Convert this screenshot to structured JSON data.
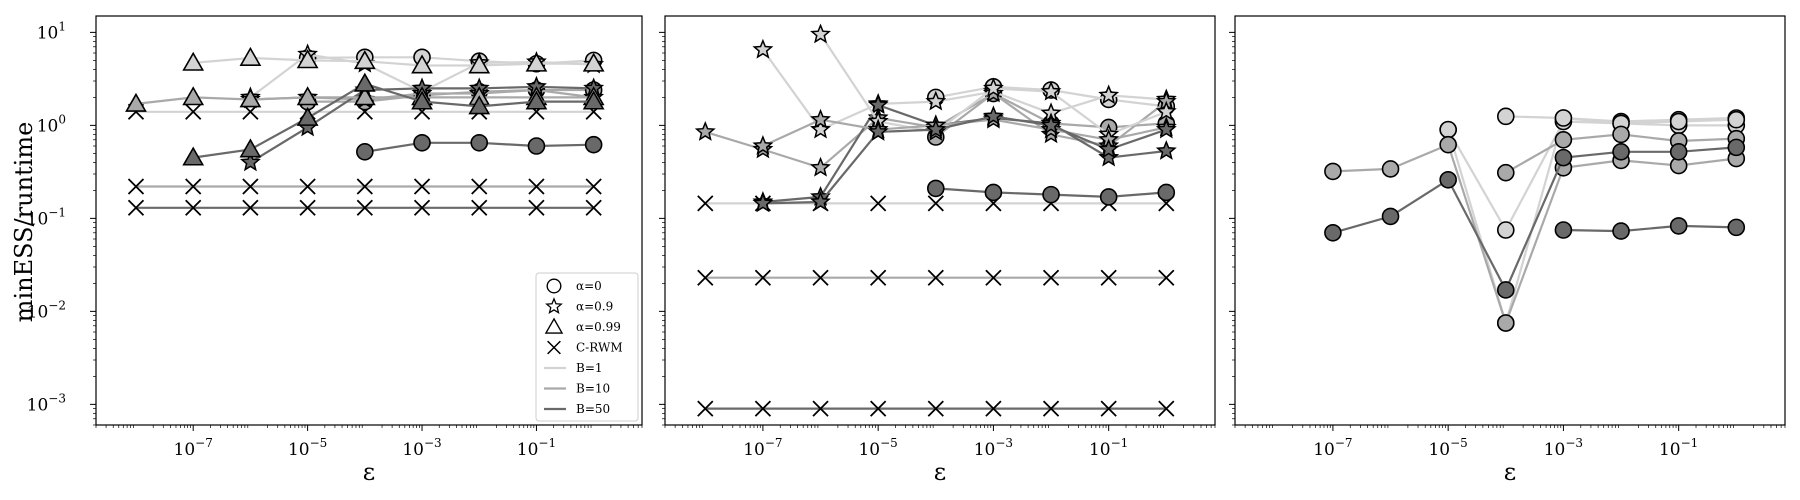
{
  "chart_data": {
    "type": "line",
    "scale": {
      "x": "log",
      "y": "log"
    },
    "xlim": [
      2e-09,
      7
    ],
    "ylim": [
      0.0006,
      15
    ],
    "ylabel": "minESS/runtime",
    "xlabel": "ε",
    "xticks": [
      1e-07,
      1e-05,
      0.001,
      0.1
    ],
    "xtick_labels": [
      "10",
      "10",
      "10",
      "10"
    ],
    "xtick_exponents": [
      "−7",
      "−5",
      "−3",
      "−1"
    ],
    "yticks": [
      0.001,
      0.01,
      0.1,
      1,
      10
    ],
    "ytick_labels": [
      "10",
      "10",
      "10",
      "10",
      "10"
    ],
    "ytick_exponents": [
      "−3",
      "−2",
      "−1",
      "0",
      "1"
    ],
    "colors": {
      "B=1": "#d3d3d3",
      "B=10": "#a9a9a9",
      "B=50": "#696969"
    },
    "legend": {
      "placement": "lower-right",
      "entries": [
        {
          "label": "α=0",
          "kind": "marker",
          "marker": "circle"
        },
        {
          "label": "α=0.9",
          "kind": "marker",
          "marker": "star"
        },
        {
          "label": "α=0.99",
          "kind": "marker",
          "marker": "triangle"
        },
        {
          "label": "C-RWM",
          "kind": "marker",
          "marker": "x"
        },
        {
          "label": "B=1",
          "kind": "line",
          "color": "B=1"
        },
        {
          "label": "B=10",
          "kind": "line",
          "color": "B=10"
        },
        {
          "label": "B=50",
          "kind": "line",
          "color": "B=50"
        }
      ]
    },
    "panels": [
      {
        "show_legend": true,
        "series": [
          {
            "marker": "x",
            "color": "B=1",
            "x": [
              1e-08,
              1e-07,
              1e-06,
              1e-05,
              0.0001,
              0.001,
              0.01,
              0.1,
              1
            ],
            "y": [
              1.4,
              1.4,
              1.4,
              1.4,
              1.4,
              1.4,
              1.4,
              1.4,
              1.4
            ]
          },
          {
            "marker": "x",
            "color": "B=10",
            "x": [
              1e-08,
              1e-07,
              1e-06,
              1e-05,
              0.0001,
              0.001,
              0.01,
              0.1,
              1
            ],
            "y": [
              0.22,
              0.22,
              0.22,
              0.22,
              0.22,
              0.22,
              0.22,
              0.22,
              0.22
            ]
          },
          {
            "marker": "x",
            "color": "B=50",
            "x": [
              1e-08,
              1e-07,
              1e-06,
              1e-05,
              0.0001,
              0.001,
              0.01,
              0.1,
              1
            ],
            "y": [
              0.13,
              0.13,
              0.13,
              0.13,
              0.13,
              0.13,
              0.13,
              0.13,
              0.13
            ]
          },
          {
            "marker": "circle",
            "color": "B=1",
            "x": [
              1e-05,
              0.0001,
              0.001,
              0.01,
              0.1,
              1
            ],
            "y": [
              5.3,
              5.4,
              5.4,
              4.9,
              4.6,
              5.0
            ]
          },
          {
            "marker": "circle",
            "color": "B=10",
            "x": [
              1e-05,
              0.0001,
              0.001,
              0.01,
              0.1,
              1
            ],
            "y": [
              1.8,
              1.8,
              2.1,
              2.3,
              2.4,
              2.4
            ]
          },
          {
            "marker": "circle",
            "color": "B=50",
            "x": [
              0.0001,
              0.001,
              0.01,
              0.1,
              1
            ],
            "y": [
              0.52,
              0.65,
              0.65,
              0.6,
              0.62
            ]
          },
          {
            "marker": "star",
            "color": "B=1",
            "x": [
              1e-06,
              1e-05,
              0.0001,
              0.001,
              0.01,
              0.1,
              1
            ],
            "y": [
              2.0,
              5.8,
              4.6,
              2.3,
              4.7,
              4.8,
              4.5
            ]
          },
          {
            "marker": "star",
            "color": "B=10",
            "x": [
              1e-06,
              1e-05,
              0.0001,
              0.001,
              0.01,
              0.1,
              1
            ],
            "y": [
              1.9,
              2.0,
              1.9,
              2.2,
              2.2,
              2.4,
              2.0
            ]
          },
          {
            "marker": "star",
            "color": "B=50",
            "x": [
              1e-06,
              1e-05,
              0.0001,
              0.001,
              0.01,
              0.1,
              1
            ],
            "y": [
              0.4,
              0.95,
              2.4,
              2.5,
              2.5,
              2.6,
              2.5
            ]
          },
          {
            "marker": "triangle",
            "color": "B=1",
            "x": [
              1e-07,
              1e-06,
              1e-05,
              0.0001,
              0.001,
              0.01,
              0.1,
              1
            ],
            "y": [
              4.7,
              5.3,
              5.0,
              4.9,
              4.4,
              4.4,
              4.6,
              4.6
            ]
          },
          {
            "marker": "triangle",
            "color": "B=10",
            "x": [
              1e-08,
              1e-07,
              1e-06,
              1e-05,
              0.0001,
              0.001,
              0.01,
              0.1,
              1
            ],
            "y": [
              1.7,
              2.0,
              1.9,
              2.0,
              2.0,
              2.0,
              2.0,
              2.0,
              2.0
            ]
          },
          {
            "marker": "triangle",
            "color": "B=50",
            "x": [
              1e-07,
              1e-06,
              1e-05,
              0.0001,
              0.001,
              0.01,
              0.1,
              1
            ],
            "y": [
              0.45,
              0.55,
              1.2,
              2.8,
              1.8,
              1.6,
              1.8,
              1.8
            ]
          }
        ]
      },
      {
        "show_legend": false,
        "series": [
          {
            "marker": "x",
            "color": "B=1",
            "x": [
              1e-08,
              1e-07,
              1e-06,
              1e-05,
              0.0001,
              0.001,
              0.01,
              0.1,
              1
            ],
            "y": [
              0.145,
              0.145,
              0.145,
              0.145,
              0.145,
              0.145,
              0.145,
              0.145,
              0.145
            ]
          },
          {
            "marker": "x",
            "color": "B=10",
            "x": [
              1e-08,
              1e-07,
              1e-06,
              1e-05,
              0.0001,
              0.001,
              0.01,
              0.1,
              1
            ],
            "y": [
              0.023,
              0.023,
              0.023,
              0.023,
              0.023,
              0.023,
              0.023,
              0.023,
              0.023
            ]
          },
          {
            "marker": "x",
            "color": "B=50",
            "x": [
              1e-08,
              1e-07,
              1e-06,
              1e-05,
              0.0001,
              0.001,
              0.01,
              0.1,
              1
            ],
            "y": [
              0.0009,
              0.0009,
              0.0009,
              0.0009,
              0.0009,
              0.0009,
              0.0009,
              0.0009,
              0.0009
            ]
          },
          {
            "marker": "circle",
            "color": "B=1",
            "x": [
              0.0001,
              0.001,
              0.01,
              0.1,
              1
            ],
            "y": [
              2.0,
              2.6,
              2.4,
              1.9,
              1.6
            ]
          },
          {
            "marker": "circle",
            "color": "B=10",
            "x": [
              0.0001,
              0.001,
              0.01,
              0.1,
              1
            ],
            "y": [
              0.75,
              2.2,
              1.05,
              0.95,
              1.05
            ]
          },
          {
            "marker": "circle",
            "color": "B=50",
            "x": [
              0.0001,
              0.001,
              0.01,
              0.1,
              1
            ],
            "y": [
              0.21,
              0.19,
              0.18,
              0.17,
              0.19
            ]
          },
          {
            "marker": "star",
            "color": "B=1",
            "x": [
              1e-07,
              1e-06,
              1e-05,
              0.0001,
              0.001,
              0.01,
              0.1,
              1
            ],
            "y": [
              6.5,
              0.9,
              1.7,
              1.8,
              2.3,
              1.35,
              2.1,
              1.9
            ]
          },
          {
            "marker": "star",
            "color": "B=10",
            "x": [
              1e-08,
              1e-07,
              1e-06,
              1e-05,
              0.0001,
              0.001,
              0.01,
              0.1,
              1
            ],
            "y": [
              0.85,
              0.55,
              0.35,
              1.2,
              0.95,
              2.2,
              0.8,
              0.6,
              1.8
            ]
          },
          {
            "marker": "star",
            "color": "B=50",
            "x": [
              1e-07,
              1e-06,
              1e-05,
              0.0001,
              0.001,
              0.01,
              0.1,
              1
            ],
            "y": [
              0.15,
              0.17,
              1.65,
              1.0,
              1.2,
              1.05,
              0.45,
              0.53
            ]
          },
          {
            "marker": "star",
            "color": "B=1",
            "x": [
              1e-06,
              1e-05,
              0.0001,
              0.001,
              0.01,
              0.1,
              1
            ],
            "y": [
              9.5,
              1.1,
              0.85,
              2.5,
              2.3,
              0.8,
              1.4
            ]
          },
          {
            "marker": "star",
            "color": "B=10",
            "x": [
              1e-07,
              1e-06,
              1e-05,
              0.0001,
              0.001,
              0.01,
              0.1,
              1
            ],
            "y": [
              0.6,
              1.15,
              0.9,
              1.0,
              1.15,
              0.9,
              0.7,
              0.95
            ]
          },
          {
            "marker": "star",
            "color": "B=50",
            "x": [
              1e-07,
              1e-06,
              1e-05,
              0.0001,
              0.001,
              0.01,
              0.1,
              1
            ],
            "y": [
              0.145,
              0.15,
              0.85,
              0.9,
              1.25,
              1.0,
              0.55,
              0.9
            ]
          }
        ]
      },
      {
        "show_legend": false,
        "series": [
          {
            "marker": "circle",
            "color": "B=1",
            "x": [
              1e-05,
              0.0001,
              0.001,
              0.01,
              0.1,
              1
            ],
            "y": [
              0.9,
              0.0075,
              1.2,
              1.1,
              1.15,
              1.2
            ]
          },
          {
            "marker": "circle",
            "color": "B=1",
            "x": [
              1e-05,
              0.0001,
              0.001,
              0.01,
              0.1,
              1
            ],
            "y": [
              0.9,
              0.075,
              1.1,
              1.05,
              1.0,
              1.0
            ]
          },
          {
            "marker": "circle",
            "color": "B=1",
            "x": [
              0.0001,
              0.001,
              0.01,
              0.1,
              1
            ],
            "y": [
              1.25,
              1.2,
              1.05,
              1.1,
              1.15
            ]
          },
          {
            "marker": "circle",
            "color": "B=10",
            "x": [
              1e-07,
              1e-06,
              1e-05,
              0.0001,
              0.001,
              0.01,
              0.1,
              1
            ],
            "y": [
              0.32,
              0.34,
              0.62,
              0.0075,
              0.35,
              0.42,
              0.37,
              0.44
            ]
          },
          {
            "marker": "circle",
            "color": "B=10",
            "x": [
              0.0001,
              0.001,
              0.01,
              0.1,
              1
            ],
            "y": [
              0.31,
              0.7,
              0.8,
              0.68,
              0.72
            ]
          },
          {
            "marker": "circle",
            "color": "B=50",
            "x": [
              1e-07,
              1e-06,
              1e-05,
              0.0001,
              0.001,
              0.01,
              0.1,
              1
            ],
            "y": [
              0.07,
              0.105,
              0.26,
              0.017,
              0.45,
              0.52,
              0.52,
              0.58
            ]
          },
          {
            "marker": "circle",
            "color": "B=50",
            "x": [
              0.001,
              0.01,
              0.1,
              1
            ],
            "y": [
              0.075,
              0.073,
              0.083,
              0.08
            ]
          }
        ]
      }
    ]
  }
}
